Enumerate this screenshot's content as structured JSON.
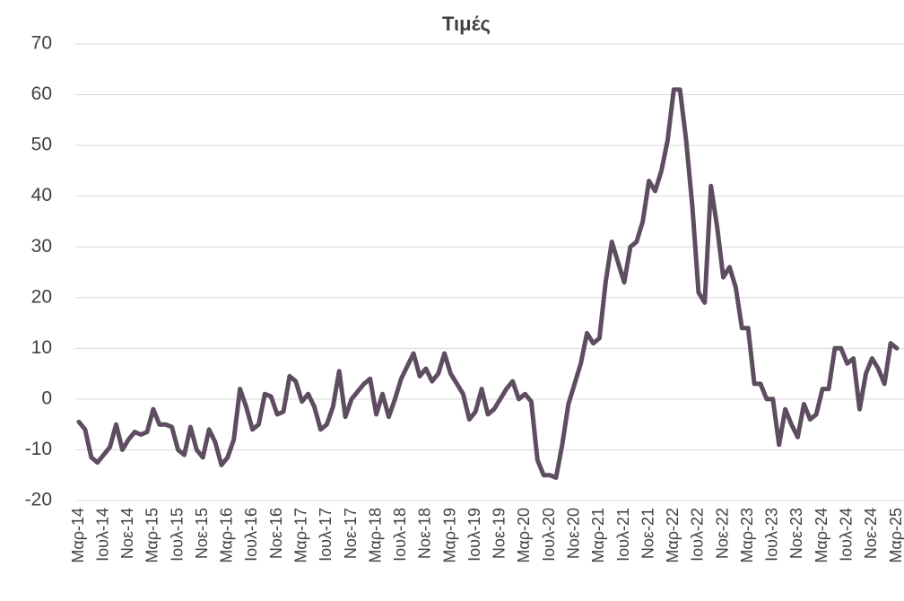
{
  "chart_data": {
    "type": "line",
    "title": "Τιμές",
    "categories": [
      "Μαρ-14",
      null,
      null,
      null,
      "Ιουλ-14",
      null,
      null,
      null,
      "Νοε-14",
      null,
      null,
      null,
      "Μαρ-15",
      null,
      null,
      null,
      "Ιουλ-15",
      null,
      null,
      null,
      "Νοε-15",
      null,
      null,
      null,
      "Μαρ-16",
      null,
      null,
      null,
      "Ιουλ-16",
      null,
      null,
      null,
      "Νοε-16",
      null,
      null,
      null,
      "Μαρ-17",
      null,
      null,
      null,
      "Ιουλ-17",
      null,
      null,
      null,
      "Νοε-17",
      null,
      null,
      null,
      "Μαρ-18",
      null,
      null,
      null,
      "Ιουλ-18",
      null,
      null,
      null,
      "Νοε-18",
      null,
      null,
      null,
      "Μαρ-19",
      null,
      null,
      null,
      "Ιουλ-19",
      null,
      null,
      null,
      "Νοε-19",
      null,
      null,
      null,
      "Μαρ-20",
      null,
      null,
      null,
      "Ιουλ-20",
      null,
      null,
      null,
      "Νοε-20",
      null,
      null,
      null,
      "Μαρ-21",
      null,
      null,
      null,
      "Ιουλ-21",
      null,
      null,
      null,
      "Νοε-21",
      null,
      null,
      null,
      "Μαρ-22",
      null,
      null,
      null,
      "Ιουλ-22",
      null,
      null,
      null,
      "Νοε-22",
      null,
      null,
      null,
      "Μαρ-23",
      null,
      null,
      null,
      "Ιουλ-23",
      null,
      null,
      null,
      "Νοε-23",
      null,
      null,
      null,
      "Μαρ-24",
      null,
      null,
      null,
      "Ιουλ-24",
      null,
      null,
      null,
      "Νοε-24",
      null,
      null,
      null,
      "Μαρ-25"
    ],
    "series": [
      {
        "color": "#5e4c60",
        "values": [
          -4.5,
          -6,
          -11.5,
          -12.5,
          -11,
          -9.5,
          -5,
          -10,
          -8,
          -6.5,
          -7,
          -6.5,
          -2,
          -5,
          -5,
          -5.5,
          -10,
          -11,
          -5.5,
          -10,
          -11.5,
          -6,
          -8.5,
          -13,
          -11.5,
          -8,
          2,
          -1.5,
          -6,
          -5,
          1,
          0.5,
          -3,
          -2.5,
          4.5,
          3.5,
          -0.5,
          1,
          -1.5,
          -6,
          -5,
          -1.5,
          5.5,
          -3.5,
          0,
          1.5,
          3,
          4,
          -3,
          1,
          -3.5,
          0,
          4,
          6.5,
          9,
          4.5,
          6,
          3.5,
          5,
          9,
          5,
          3,
          1,
          -4,
          -2.5,
          2,
          -3,
          -2,
          0,
          2,
          3.5,
          0,
          1,
          -0.5,
          -12,
          -15,
          -15,
          -15.5,
          -9,
          -1,
          3,
          7,
          13,
          11,
          12,
          23,
          31,
          27,
          23,
          30,
          31,
          35,
          43,
          41,
          45,
          51,
          61,
          61,
          51,
          38,
          21,
          19,
          42,
          34,
          24,
          26,
          22,
          14,
          14,
          3,
          3,
          0,
          0,
          -9,
          -2,
          -5,
          -7.5,
          -1,
          -4,
          -3,
          2,
          2,
          10,
          10,
          7,
          8,
          -2,
          5,
          8,
          6,
          3,
          11,
          10
        ]
      }
    ],
    "ylim": [
      -20,
      70
    ],
    "yticks": [
      -20,
      -10,
      0,
      10,
      20,
      30,
      40,
      50,
      60,
      70
    ],
    "grid": true
  }
}
